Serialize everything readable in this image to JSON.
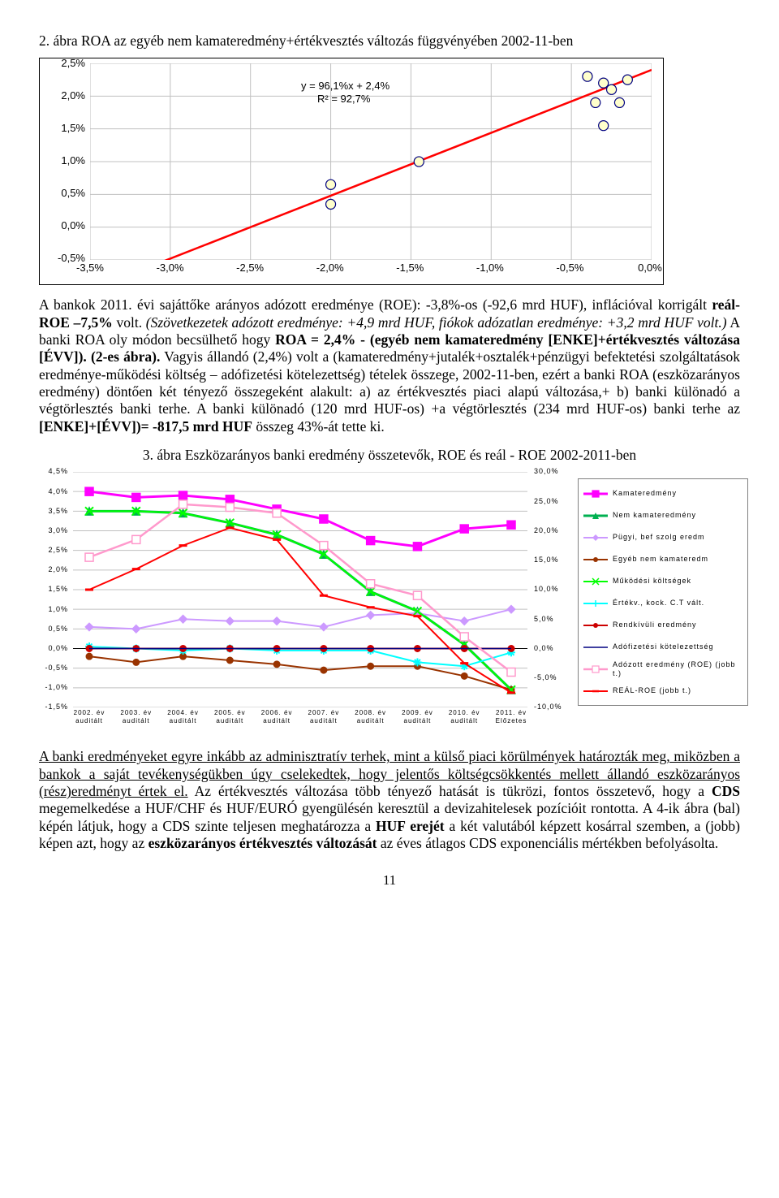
{
  "fig2": {
    "title": "2. ábra ROA az egyéb nem kamateredmény+értékvesztés változás függvényében 2002-11-ben",
    "equation_line1": "y = 96,1%x + 2,4%",
    "equation_line2": "R² = 92,7%",
    "type": "scatter-with-fit",
    "xlim": [
      -3.5,
      0.0
    ],
    "ylim": [
      -0.5,
      2.5
    ],
    "xticks": [
      "-3,5%",
      "-3,0%",
      "-2,5%",
      "-2,0%",
      "-1,5%",
      "-1,0%",
      "-0,5%",
      "0,0%"
    ],
    "yticks": [
      "-0,5%",
      "0,0%",
      "0,5%",
      "1,0%",
      "1,5%",
      "2,0%",
      "2,5%"
    ],
    "background_color": "#ffffff",
    "plot_border_color": "#808080",
    "grid_color": "#c0c0c0",
    "fit_color": "#ff0000",
    "fit_width": 2.5,
    "marker_fill": "#ffffcc",
    "marker_stroke": "#000080",
    "marker_radius": 6,
    "points": [
      {
        "x": -2.0,
        "y": 0.35
      },
      {
        "x": -2.0,
        "y": 0.65
      },
      {
        "x": -1.45,
        "y": 1.0
      },
      {
        "x": -0.35,
        "y": 1.9
      },
      {
        "x": -0.25,
        "y": 2.1
      },
      {
        "x": -0.2,
        "y": 1.9
      },
      {
        "x": -0.3,
        "y": 1.55
      },
      {
        "x": -0.15,
        "y": 2.25
      },
      {
        "x": -0.3,
        "y": 2.2
      },
      {
        "x": -0.4,
        "y": 2.3
      }
    ],
    "fit_line": {
      "x1": -3.5,
      "y1": -0.96,
      "x2": 0.0,
      "y2": 2.4
    }
  },
  "para1_prefix": "A bankok 2011. évi sajáttőke arányos adózott eredménye (ROE): -3,8%-os (-92,6 mrd HUF), inflációval korrigált ",
  "para1_bold1": "reál-ROE –7,5%",
  "para1_mid1": " volt. ",
  "para1_italic": "(Szövetkezetek adózott eredménye: +4,9 mrd HUF, fiókok adózatlan eredménye: +3,2 mrd HUF volt.)",
  "para1_mid2": " A banki ROA oly módon becsülhető hogy ",
  "para1_bold2": "ROA = 2,4% - (egyéb nem kamateredmény [ENKE]+értékvesztés változása [ÉVV]). (2-es ábra).",
  "para1_mid3": " Vagyis állandó (2,4%) volt a (kamateredmény+jutalék+osztalék+pénzügyi befektetési szolgáltatások eredménye-működési költség – adófizetési kötelezettség) tételek összege, 2002-11-ben, ezért a banki ROA (eszközarányos eredmény) döntően két tényező összegeként alakult: a) az értékvesztés piaci alapú változása,+ b) banki különadó a végtörlesztés banki terhe. A banki különadó (120 mrd HUF-os) +a végtörlesztés (234 mrd HUF-os) banki terhe az ",
  "para1_bold3": "[ENKE]+[ÉVV])= -817,5 mrd HUF",
  "para1_tail": " összeg 43%-át tette ki.",
  "fig3": {
    "title": "3. ábra Eszközarányos banki eredmény összetevők, ROE és reál - ROE 2002-2011-ben",
    "type": "multi-line-dual-axis",
    "left_ylim": [
      -1.5,
      4.5
    ],
    "right_ylim": [
      -10,
      30
    ],
    "left_yticks": [
      "-1,5%",
      "-1,0%",
      "-0,5%",
      "0,0%",
      "0,5%",
      "1,0%",
      "1,5%",
      "2,0%",
      "2,5%",
      "3,0%",
      "3,5%",
      "4,0%",
      "4,5%"
    ],
    "right_yticks": [
      "-10,0%",
      "-5,0%",
      "0,0%",
      "5,0%",
      "10,0%",
      "15,0%",
      "20,0%",
      "25,0%",
      "30,0%"
    ],
    "xticks": [
      "2002. év auditált",
      "2003. év auditált",
      "2004. év auditált",
      "2005. év auditált",
      "2006. év auditált",
      "2007. év auditált",
      "2008. év auditált",
      "2009. év auditált",
      "2010. év auditált",
      "2011. év Előzetes"
    ],
    "background_color": "#ffffff",
    "grid_color": "#c0c0c0",
    "ytick_font": 9,
    "series": [
      {
        "name": "Kamateredmény",
        "color": "#ff00ff",
        "marker": "square",
        "width": 3,
        "axis": "left",
        "data": [
          4.0,
          3.85,
          3.9,
          3.8,
          3.55,
          3.3,
          2.75,
          2.6,
          3.05,
          3.15
        ]
      },
      {
        "name": "Nem kamateredmény",
        "color": "#00b050",
        "marker": "triangle",
        "width": 3,
        "axis": "left",
        "data": [
          3.5,
          3.5,
          3.45,
          3.2,
          2.9,
          2.4,
          1.45,
          0.95,
          0.1,
          -1.05
        ]
      },
      {
        "name": "Pügyi, bef szolg eredm",
        "color": "#cc99ff",
        "marker": "diamond",
        "width": 2,
        "axis": "left",
        "data": [
          0.55,
          0.5,
          0.75,
          0.7,
          0.7,
          0.55,
          0.85,
          0.9,
          0.7,
          1.0
        ]
      },
      {
        "name": "Egyéb nem kamateredm",
        "color": "#993300",
        "marker": "circle",
        "width": 2,
        "axis": "left",
        "data": [
          -0.2,
          -0.35,
          -0.2,
          -0.3,
          -0.4,
          -0.55,
          -0.45,
          -0.45,
          -0.7,
          -1.05
        ]
      },
      {
        "name": "Működési költségek",
        "color": "#00ff00",
        "marker": "x",
        "width": 2,
        "axis": "left",
        "data": [
          3.5,
          3.5,
          3.45,
          3.2,
          2.9,
          2.4,
          1.45,
          0.95,
          0.1,
          -1.05
        ]
      },
      {
        "name": "Értékv., kock. C.T vált.",
        "color": "#00ffff",
        "marker": "star",
        "width": 2,
        "axis": "left",
        "data": [
          0.05,
          0.0,
          -0.05,
          0.0,
          -0.05,
          -0.05,
          -0.05,
          -0.35,
          -0.45,
          -0.1
        ]
      },
      {
        "name": "Rendkívüli eredmény",
        "color": "#cc0000",
        "marker": "circle",
        "width": 2,
        "axis": "left",
        "data": [
          0.0,
          0.0,
          0.0,
          0.0,
          0.0,
          0.0,
          0.0,
          0.0,
          0.0,
          0.0
        ]
      },
      {
        "name": "Adófizetési kötelezettség",
        "color": "#000080",
        "marker": "none",
        "width": 1.5,
        "axis": "left",
        "data": [
          0.0,
          0.0,
          0.0,
          0.0,
          0.0,
          0.0,
          0.0,
          0.0,
          0.0,
          0.0
        ]
      },
      {
        "name": "Adózott eredmény (ROE) (jobb t.)",
        "color": "#ff99cc",
        "marker": "square-open",
        "width": 2.5,
        "axis": "right",
        "data": [
          15.5,
          18.5,
          24.5,
          24.0,
          23.0,
          17.5,
          11.0,
          9.0,
          2.0,
          -4.0
        ]
      },
      {
        "name": "REÁL-ROE (jobb t.)",
        "color": "#ff0000",
        "marker": "dash",
        "width": 2,
        "axis": "right",
        "data": [
          10.0,
          13.5,
          17.5,
          20.5,
          18.5,
          9.0,
          7.0,
          5.5,
          -2.5,
          -7.5
        ]
      }
    ]
  },
  "para2_underline": "A banki eredményeket egyre inkább az adminisztratív terhek, mint a külső piaci körülmények határozták meg, miközben a bankok a saját tevékenységükben úgy cselekedtek, hogy jelentős költségcsökkentés mellett állandó eszközarányos (rész)eredményt értek el.",
  "para2_mid1": " Az értékvesztés változása több tényező hatását is tükrözi, fontos összetevő, hogy a ",
  "para2_bold1": "CDS",
  "para2_mid2": " megemelkedése a HUF/CHF és HUF/EURÓ gyengülésén keresztül a devizahitelesek pozícióit rontotta. A 4-ik ábra (bal) képén látjuk, hogy a CDS szinte teljesen meghatározza a ",
  "para2_bold2": "HUF erejét",
  "para2_mid3": " a két valutából képzett kosárral szemben, a (jobb) képen azt, hogy az ",
  "para2_bold3": "eszközarányos értékvesztés változását",
  "para2_tail": " az éves átlagos CDS exponenciális mértékben befolyásolta.",
  "page_number": "11"
}
